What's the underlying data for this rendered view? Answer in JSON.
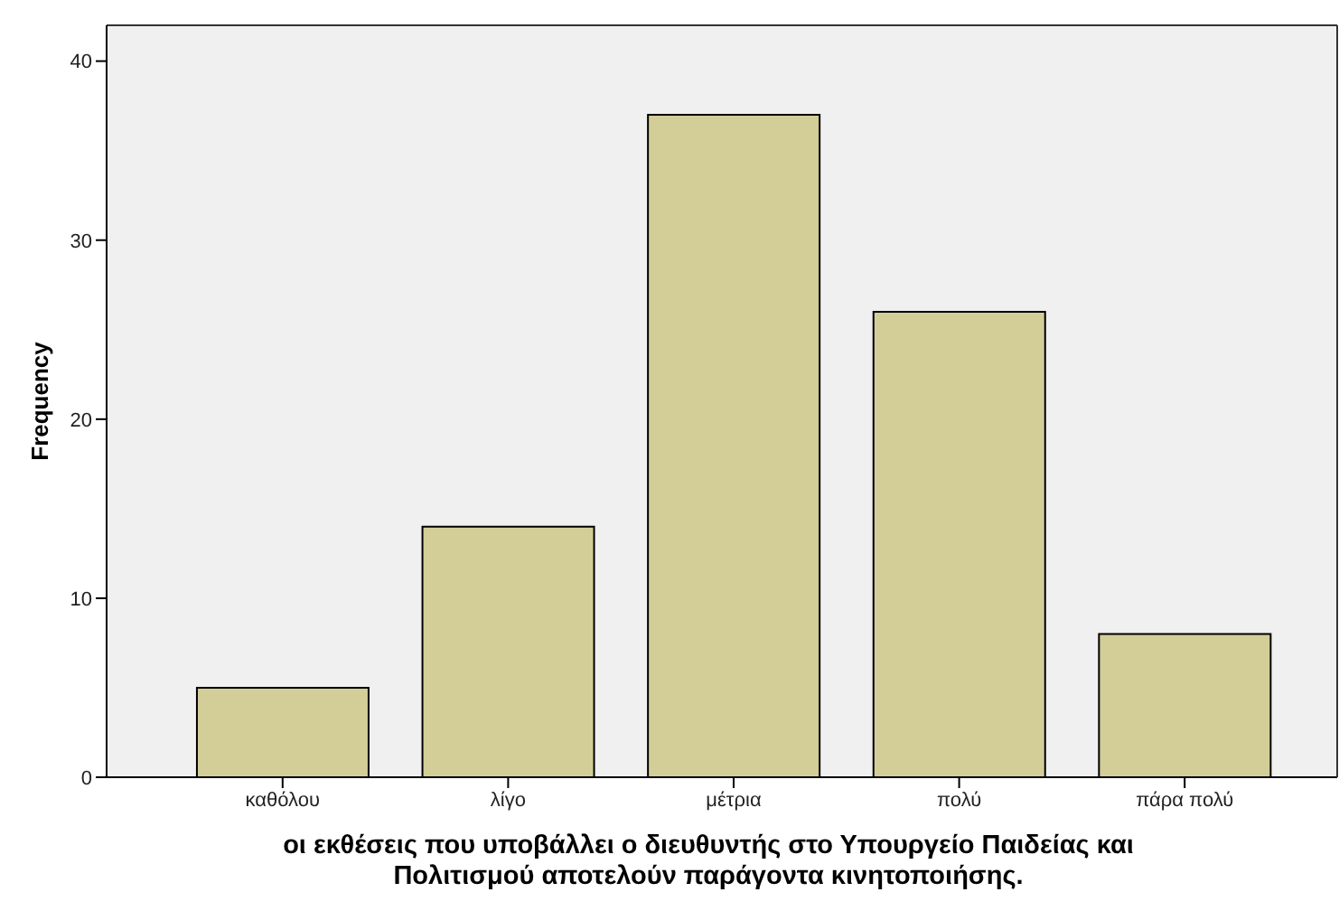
{
  "chart_data": {
    "type": "bar",
    "xlabel": "οι εκθέσεις που υποβάλλει ο διευθυντής στο Υπουργείο Παιδείας και Πολιτισμού αποτελούν παράγοντα κινητοποιήσης.",
    "ylabel": "Frequency",
    "categories": [
      "καθόλου",
      "λίγο",
      "μέτρια",
      "πολύ",
      "πάρα πολύ"
    ],
    "values": [
      5,
      14,
      37,
      26,
      8
    ],
    "color": "#d3ce97",
    "ylim": [
      0,
      42
    ],
    "yticks": [
      0,
      10,
      20,
      30,
      40
    ],
    "grid": false
  }
}
